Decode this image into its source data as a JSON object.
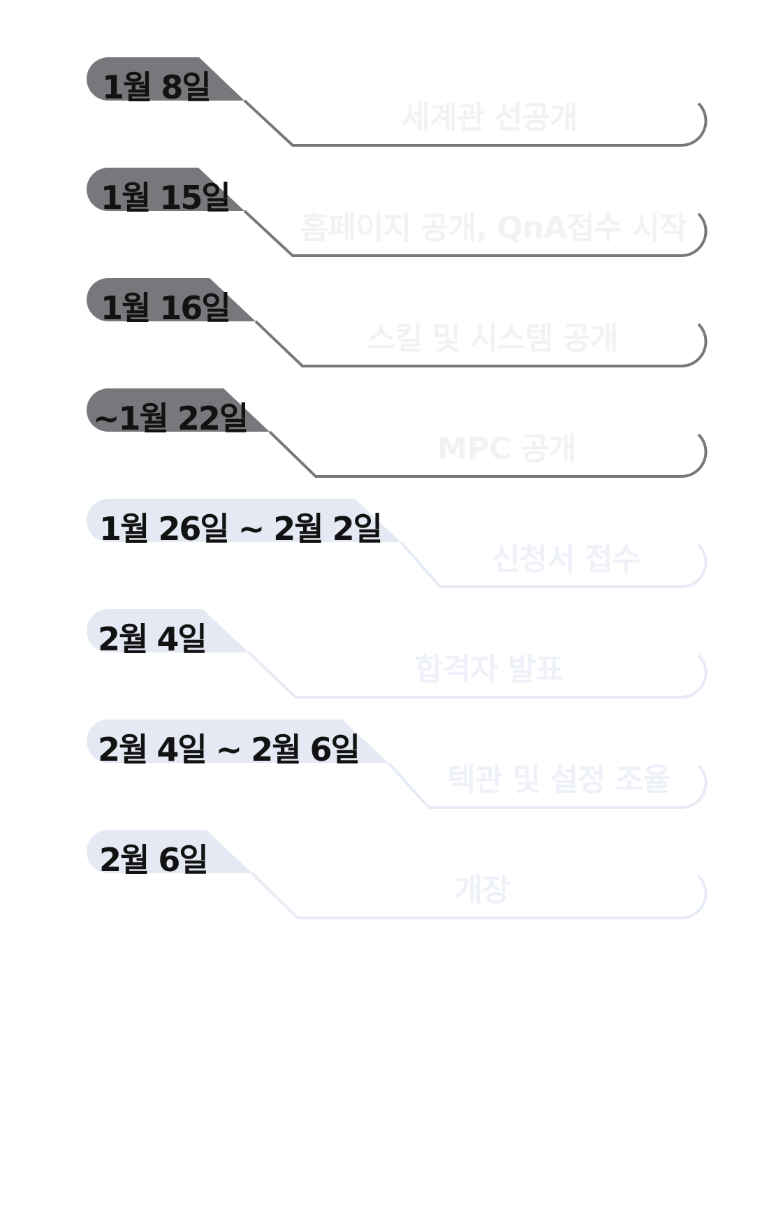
{
  "colors": {
    "past_tab": "#77787b",
    "past_line": "#77787b",
    "future_tab": "#e4e9f4",
    "future_line": "#e6ebf6",
    "date_text": "#121212",
    "past_event_text": "#f2f2f3",
    "future_event_text": "#eef1f8"
  },
  "schedule": [
    {
      "date": "1월 8일",
      "event": "세계관 선공개",
      "status": "past"
    },
    {
      "date": "1월 15일",
      "event": "홈페이지 공개, QnA접수 시작",
      "status": "past"
    },
    {
      "date": "1월 16일",
      "event": "스킬 및 시스템 공개",
      "status": "past"
    },
    {
      "date": "~1월 22일",
      "event": "MPC 공개",
      "status": "past"
    },
    {
      "date": "1월 26일 ~ 2월 2일",
      "event": "신청서 접수",
      "status": "future"
    },
    {
      "date": "2월 4일",
      "event": "합격자 발표",
      "status": "future"
    },
    {
      "date": "2월  4일 ~ 2월 6일",
      "event": "텍관 및 설정 조율",
      "status": "future"
    },
    {
      "date": "2월 6일",
      "event": "개장",
      "status": "future"
    }
  ]
}
